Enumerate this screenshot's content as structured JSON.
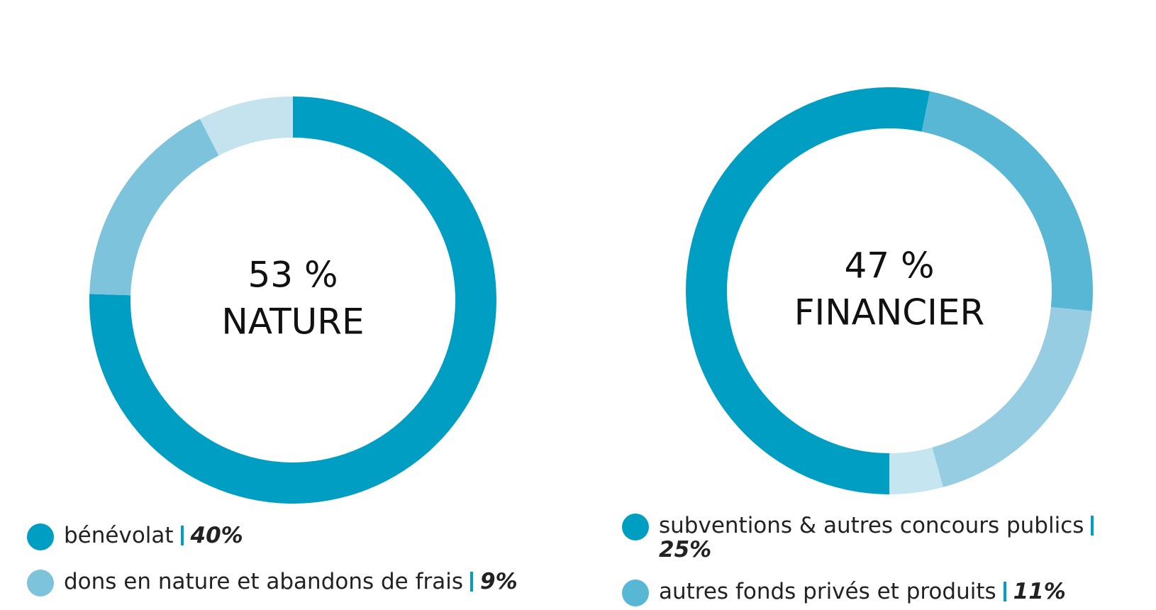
{
  "chart_data": [
    {
      "type": "donut",
      "total": 53,
      "total_label": "53 %",
      "title": "NATURE",
      "start_angle": 0,
      "categories": [
        "bénévolat",
        "dons en nature et abandons de frais",
        null
      ],
      "values": [
        40,
        9,
        4
      ],
      "value_labels": [
        "40%",
        "9%",
        null
      ],
      "colors": [
        "#009ec3",
        "#7dc3dc",
        "#c5e3ee"
      ]
    },
    {
      "type": "donut",
      "total": 47,
      "total_label": "47 %",
      "title": "FINANCIER",
      "start_angle": 180,
      "categories": [
        "subventions & autres concours publics",
        "autres fonds privés et produits",
        null,
        null
      ],
      "values": [
        25,
        11,
        9,
        2
      ],
      "value_labels": [
        "25%",
        "11%",
        null,
        null
      ],
      "colors": [
        "#009ec3",
        "#57b7d5",
        "#97cde2",
        "#c5e5f0"
      ]
    }
  ]
}
